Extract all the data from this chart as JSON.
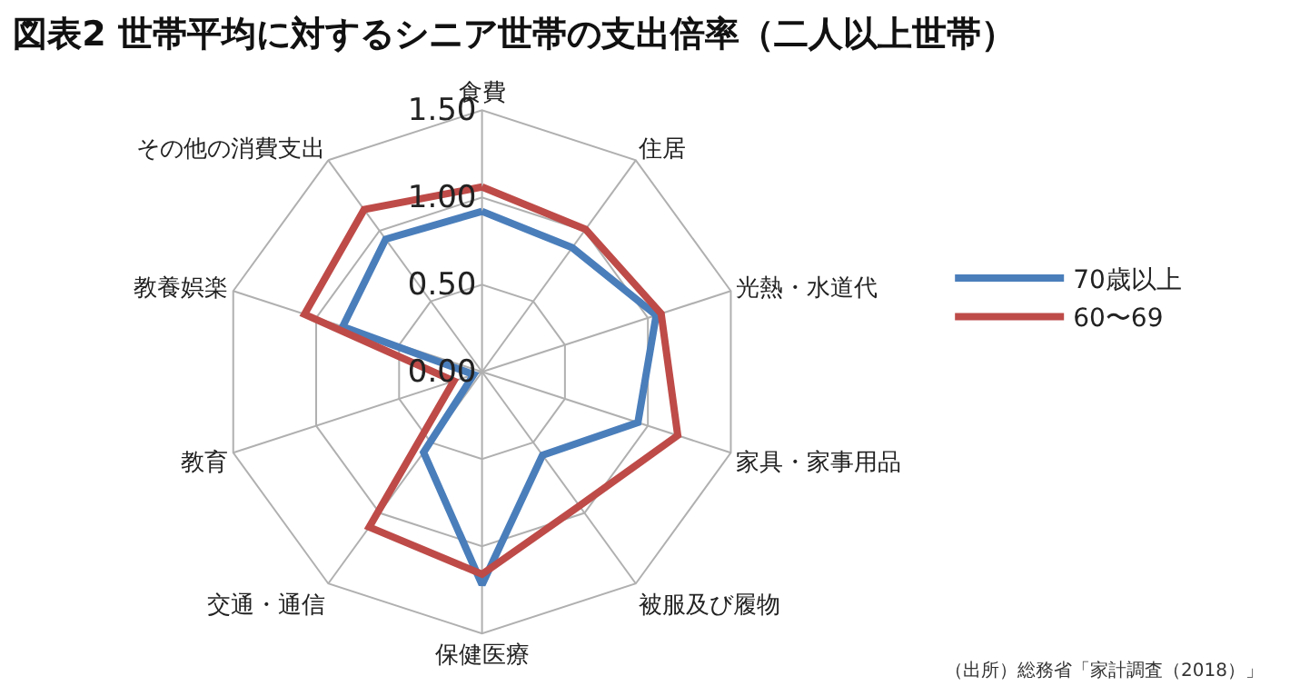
{
  "chart_data": {
    "type": "radar",
    "title": "図表2 世帯平均に対するシニア世帯の支出倍率（二人以上世帯）",
    "categories": [
      "食費",
      "住居",
      "光熱・水道代",
      "家具・家事用品",
      "被服及び履物",
      "保健医療",
      "交通・通信",
      "教育",
      "教養娯楽",
      "その他の消費支出"
    ],
    "series": [
      {
        "name": "70歳以上",
        "color": "#4a7ebb",
        "values": [
          0.92,
          0.88,
          1.05,
          0.94,
          0.59,
          1.22,
          0.57,
          0.05,
          0.84,
          0.94
        ]
      },
      {
        "name": "60〜69",
        "color": "#be4b48",
        "values": [
          1.06,
          1.01,
          1.08,
          1.18,
          0.95,
          1.16,
          1.1,
          0.17,
          1.07,
          1.15
        ]
      }
    ],
    "ylim": [
      0,
      1.5
    ],
    "yticks": [
      {
        "value": 0,
        "label": "0.00"
      },
      {
        "value": 0.5,
        "label": "0.50"
      },
      {
        "value": 1,
        "label": "1.00"
      },
      {
        "value": 1.5,
        "label": "1.50"
      }
    ],
    "grid": true,
    "legend": "right",
    "marker": "none",
    "line_style": "solid",
    "annotations": [
      "（出所）総務省「家計調査（2018）」"
    ]
  }
}
